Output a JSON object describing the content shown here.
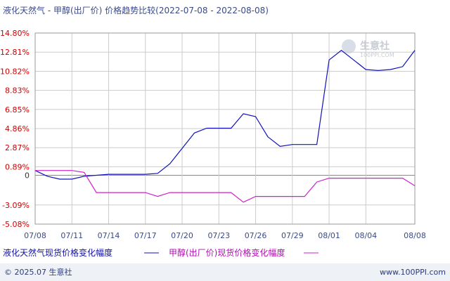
{
  "chart_data": {
    "type": "line",
    "title": "液化天然气 - 甲醇(出厂价) 价格趋势比较(2022-07-08 - 2022-08-08)",
    "x": [
      "07/08",
      "07/09",
      "07/10",
      "07/11",
      "07/12",
      "07/13",
      "07/14",
      "07/15",
      "07/16",
      "07/17",
      "07/18",
      "07/19",
      "07/20",
      "07/21",
      "07/22",
      "07/23",
      "07/24",
      "07/25",
      "07/26",
      "07/27",
      "07/28",
      "07/29",
      "07/30",
      "07/31",
      "08/01",
      "08/02",
      "08/03",
      "08/04",
      "08/05",
      "08/06",
      "08/07",
      "08/08"
    ],
    "x_tick_labels": [
      "07/08",
      "07/11",
      "07/14",
      "07/17",
      "07/20",
      "07/23",
      "07/26",
      "07/29",
      "08/01",
      "08/04",
      "08/08"
    ],
    "y_tick_labels": [
      "14.80%",
      "12.81%",
      "10.82%",
      "8.83%",
      "6.85%",
      "4.86%",
      "2.87%",
      "0.89%",
      "0",
      "-3.09%",
      "-5.08%"
    ],
    "y_ticks": [
      14.8,
      12.81,
      10.82,
      8.83,
      6.85,
      4.86,
      2.87,
      0.89,
      0,
      -3.09,
      -5.08
    ],
    "ylim": [
      -5.08,
      14.8
    ],
    "grid": true,
    "legend_position": "bottom",
    "series": [
      {
        "name": "液化天然气现货价格变化幅度",
        "color": "#1010c0",
        "values": [
          0.5,
          -0.1,
          -0.4,
          -0.4,
          -0.1,
          0.0,
          0.1,
          0.1,
          0.1,
          0.1,
          0.2,
          1.2,
          2.8,
          4.4,
          4.9,
          4.9,
          4.9,
          6.4,
          6.1,
          4.0,
          3.0,
          3.2,
          3.2,
          3.2,
          12.0,
          13.0,
          12.0,
          11.0,
          10.9,
          11.0,
          11.3,
          13.0
        ]
      },
      {
        "name": "甲醇(出厂价)现货价格变化幅度",
        "color": "#d020c8",
        "values": [
          0.5,
          0.5,
          0.5,
          0.5,
          0.3,
          -1.8,
          -1.8,
          -1.8,
          -1.8,
          -1.8,
          -2.2,
          -1.8,
          -1.8,
          -1.8,
          -1.8,
          -1.8,
          -1.8,
          -2.8,
          -2.2,
          -2.2,
          -2.2,
          -2.2,
          -2.2,
          -0.7,
          -0.3,
          -0.3,
          -0.3,
          -0.3,
          -0.3,
          -0.3,
          -0.3,
          -1.1
        ]
      }
    ]
  },
  "watermark": {
    "brand": "生意社",
    "url": "100PPI.COM"
  },
  "footer": {
    "left": "© 2025.07 生意社",
    "right": "www.100PPI.com"
  },
  "colors": {
    "axis_pos": "#cc0000",
    "axis_neg": "#cc0000",
    "zero": "#888888",
    "grid": "#cccccc",
    "footer_bg": "#eef2f7"
  }
}
